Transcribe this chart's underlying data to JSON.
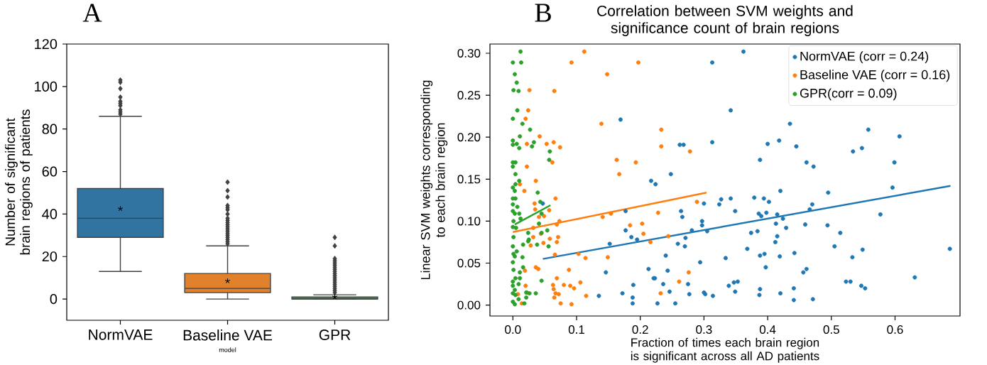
{
  "chart_data": [
    {
      "type": "box",
      "annotations": [
        "A"
      ],
      "xlabel": "model",
      "ylabel": "Number of significant brain regions of patients",
      "categories": [
        "NormVAE",
        "Baseline VAE",
        "GPR"
      ],
      "colors": [
        "#3274a1",
        "#e1812c",
        "#3a923a"
      ],
      "boxes": [
        {
          "low": 13,
          "q1": 29,
          "median": 38,
          "q3": 52,
          "high": 86,
          "mean": 42.5,
          "outliers": [
            87,
            88,
            89,
            91,
            92,
            93,
            95,
            99,
            102,
            103
          ]
        },
        {
          "low": 0,
          "q1": 3,
          "median": 5,
          "q3": 12,
          "high": 25,
          "mean": 8.5,
          "outliers": [
            26,
            27,
            28,
            29,
            30,
            31,
            32,
            33,
            34,
            35,
            36,
            37,
            38,
            40,
            42,
            43,
            44,
            48,
            51,
            55
          ]
        },
        {
          "low": 0,
          "q1": 0,
          "median": 0,
          "q3": 1,
          "high": 2,
          "mean": 1,
          "outliers": [
            3,
            4,
            5,
            6,
            7,
            8,
            9,
            10,
            11,
            12,
            13,
            14,
            15,
            16,
            17,
            18,
            19,
            25,
            29
          ]
        }
      ],
      "ylim": [
        -10,
        120
      ],
      "yticks": [
        0,
        20,
        40,
        60,
        80,
        100,
        120
      ]
    },
    {
      "type": "scatter",
      "annotations": [
        "B"
      ],
      "title": "Correlation between SVM weights and significance count of brain regions",
      "xlabel": "Fraction of times each brain region is significant across all AD patients",
      "ylabel": "Linear SVM weights corresponding to each brain region",
      "xlim": [
        -0.036,
        0.702
      ],
      "ylim": [
        -0.013,
        0.311
      ],
      "xticks": [
        {
          "value": 0,
          "label": "0.0"
        },
        0.1,
        0.2,
        0.3,
        0.4,
        0.5,
        0.6
      ],
      "yticks": [
        {
          "value": 0,
          "label": "0.00"
        },
        {
          "value": 0.05,
          "label": "0.05"
        },
        {
          "value": 0.1,
          "label": "0.10"
        },
        {
          "value": 0.15,
          "label": "0.15"
        },
        {
          "value": 0.2,
          "label": "0.20"
        },
        {
          "value": 0.25,
          "label": "0.25"
        },
        {
          "value": 0.3,
          "label": "0.30"
        }
      ],
      "legend": "top right",
      "series": [
        {
          "name": "NormVAE (corr = 0.24)",
          "marker": "circle",
          "color": "#1f77b4",
          "x": [
            0.313,
            0.169,
            0.313,
            0.262,
            0.268,
            0.248,
            0.217,
            0.224,
            0.177,
            0.264,
            0.266,
            0.3,
            0.297,
            0.297,
            0.305,
            0.281,
            0.177,
            0.186,
            0.195,
            0.152,
            0.259,
            0.27,
            0.271,
            0.24,
            0.294,
            0.146,
            0.213,
            0.243,
            0.221,
            0.223,
            0.236,
            0.189,
            0.275,
            0.246,
            0.172,
            0.135,
            0.188,
            0.277,
            0.3,
            0.302,
            0.314,
            0.188,
            0.227,
            0.255,
            0.047,
            0.362,
            0.342,
            0.435,
            0.558,
            0.607,
            0.418,
            0.4,
            0.445,
            0.534,
            0.548,
            0.388,
            0.461,
            0.472,
            0.599,
            0.596,
            0.42,
            0.495,
            0.327,
            0.342,
            0.324,
            0.379,
            0.394,
            0.402,
            0.47,
            0.466,
            0.349,
            0.386,
            0.39,
            0.398,
            0.415,
            0.424,
            0.577,
            0.413,
            0.459,
            0.494,
            0.429,
            0.374,
            0.384,
            0.514,
            0.415,
            0.412,
            0.505,
            0.368,
            0.549,
            0.686,
            0.334,
            0.388,
            0.395,
            0.419,
            0.442,
            0.533,
            0.397,
            0.456,
            0.461,
            0.631,
            0.339,
            0.347,
            0.353,
            0.523,
            0.53,
            0.547,
            0.553,
            0.349,
            0.388,
            0.441,
            0.387,
            0.42,
            0.441,
            0.471
          ],
          "values": [
            0.289,
            0.221,
            0.194,
            0.191,
            0.191,
            0.156,
            0.148,
            0.144,
            0.112,
            0.112,
            0.105,
            0.121,
            0.1,
            0.095,
            0.088,
            0.089,
            0.089,
            0.081,
            0.078,
            0.073,
            0.073,
            0.07,
            0.08,
            0.059,
            0.051,
            0.039,
            0.043,
            0.041,
            0.032,
            0.032,
            0.025,
            0.024,
            0.025,
            0.016,
            0.014,
            0.011,
            0.009,
            0.013,
            0.015,
            0.013,
            0.011,
            0.002,
            0.002,
            0.002,
            0.121,
            0.302,
            0.232,
            0.216,
            0.209,
            0.201,
            0.196,
            0.192,
            0.189,
            0.183,
            0.187,
            0.173,
            0.17,
            0.165,
            0.17,
            0.14,
            0.136,
            0.134,
            0.126,
            0.127,
            0.12,
            0.128,
            0.127,
            0.123,
            0.12,
            0.114,
            0.112,
            0.109,
            0.106,
            0.11,
            0.108,
            0.103,
            0.108,
            0.097,
            0.096,
            0.095,
            0.092,
            0.086,
            0.088,
            0.086,
            0.082,
            0.075,
            0.07,
            0.067,
            0.066,
            0.067,
            0.056,
            0.059,
            0.061,
            0.058,
            0.062,
            0.057,
            0.045,
            0.039,
            0.043,
            0.033,
            0.023,
            0.027,
            0.028,
            0.028,
            0.028,
            0.023,
            0.02,
            0.016,
            0.019,
            0.02,
            0.012,
            0.014,
            0.006,
            0.007
          ]
        },
        {
          "name": "Baseline VAE (corr = 0.16)",
          "marker": "circle",
          "color": "#ff7f0e",
          "x": [
            0.112,
            0.092,
            0.197,
            0.148,
            0.026,
            0.065,
            0.024,
            0.02,
            0.139,
            0.233,
            0.042,
            0.233,
            0.278,
            0.022,
            0.053,
            0.064,
            0.074,
            0.163,
            0.193,
            0.062,
            0.022,
            0.167,
            0.036,
            0.011,
            0.018,
            0.067,
            0.034,
            0.035,
            0.049,
            0.041,
            0.057,
            0.073,
            0.069,
            0.141,
            0.154,
            0.228,
            0.289,
            0.184,
            0.203,
            0.205,
            0.216,
            0.032,
            0.044,
            0.032,
            0.071,
            0.058,
            0.048,
            0.069,
            0.028,
            0.103,
            0.066,
            0.114,
            0.149,
            0.036,
            0.04,
            0.019,
            0.088,
            0.276,
            0.069,
            0.063,
            0.08,
            0.09,
            0.096,
            0.106,
            0.261,
            0.064,
            0.067,
            0.072,
            0.065,
            0.115,
            0.232,
            0.075,
            0.092,
            0.02,
            0.022,
            0.014,
            0.008,
            0.244
          ],
          "values": [
            0.302,
            0.289,
            0.289,
            0.275,
            0.256,
            0.255,
            0.232,
            0.222,
            0.216,
            0.209,
            0.201,
            0.189,
            0.183,
            0.192,
            0.192,
            0.194,
            0.188,
            0.173,
            0.17,
            0.17,
            0.165,
            0.156,
            0.148,
            0.144,
            0.136,
            0.127,
            0.121,
            0.114,
            0.106,
            0.105,
            0.113,
            0.1,
            0.096,
            0.105,
            0.109,
            0.11,
            0.123,
            0.095,
            0.097,
            0.085,
            0.075,
            0.092,
            0.085,
            0.081,
            0.081,
            0.079,
            0.074,
            0.075,
            0.071,
            0.061,
            0.06,
            0.056,
            0.057,
            0.045,
            0.043,
            0.041,
            0.042,
            0.039,
            0.032,
            0.024,
            0.024,
            0.023,
            0.02,
            0.027,
            0.028,
            0.019,
            0.014,
            0.013,
            0.009,
            0.011,
            0.014,
            0.002,
            0.001,
            0.023,
            0.015,
            0.002,
            0.013,
            0.082
          ]
        },
        {
          "name": "GPR(corr = 0.09)",
          "marker": "circle",
          "color": "#2ca02c",
          "x": [
            0.012,
            0.0,
            0.013,
            0.003,
            0.006,
            0.001,
            0.009,
            0.007,
            0.0,
            0.015,
            0.027,
            0.011,
            0.0,
            0.0,
            0.006,
            0.01,
            0.033,
            0.03,
            0.058,
            0.057,
            0.0,
            0.004,
            0.0,
            0.004,
            0.01,
            0.004,
            0.0,
            0.003,
            0.039,
            0.0,
            0.004,
            0.043,
            0.0,
            0.007,
            0.0,
            0.003,
            0.01,
            0.012,
            0.001,
            0.0,
            0.005,
            0.045,
            0.041,
            0.054,
            0.045,
            0.024,
            0.025,
            0.024,
            0.001,
            0.0,
            0.016,
            0.038,
            0.056,
            0.001,
            0.006,
            0.003,
            0.015,
            0.0,
            0.016,
            0.001,
            0.011,
            0.004,
            0.011,
            0.0,
            0.0,
            0.009,
            0.045,
            0.021,
            0.026,
            0.036,
            0.004,
            0.009,
            0.021,
            0.0,
            0.003,
            0.018,
            0.0,
            0.003
          ],
          "values": [
            0.302,
            0.289,
            0.289,
            0.275,
            0.265,
            0.256,
            0.255,
            0.232,
            0.222,
            0.216,
            0.209,
            0.201,
            0.196,
            0.191,
            0.192,
            0.187,
            0.194,
            0.189,
            0.183,
            0.173,
            0.17,
            0.17,
            0.165,
            0.156,
            0.148,
            0.144,
            0.14,
            0.136,
            0.134,
            0.127,
            0.127,
            0.123,
            0.12,
            0.117,
            0.112,
            0.109,
            0.109,
            0.103,
            0.1,
            0.093,
            0.092,
            0.109,
            0.097,
            0.089,
            0.086,
            0.086,
            0.078,
            0.076,
            0.081,
            0.07,
            0.072,
            0.072,
            0.07,
            0.061,
            0.064,
            0.058,
            0.057,
            0.051,
            0.045,
            0.042,
            0.039,
            0.032,
            0.032,
            0.028,
            0.023,
            0.025,
            0.029,
            0.015,
            0.014,
            0.014,
            0.012,
            0.007,
            0.009,
            0.004,
            0.001,
            0.002,
            0.014,
            0.018
          ]
        },
        {
          "type": "line",
          "marker": "none",
          "color": "#1f77b4",
          "x": [
            0.047,
            0.687
          ],
          "values": [
            0.055,
            0.142
          ]
        },
        {
          "type": "line",
          "marker": "none",
          "color": "#ff7f0e",
          "x": [
            0.0,
            0.304
          ],
          "values": [
            0.087,
            0.134
          ]
        },
        {
          "type": "line",
          "marker": "none",
          "color": "#2ca02c",
          "x": [
            0.003,
            0.059
          ],
          "values": [
            0.096,
            0.119
          ]
        }
      ]
    }
  ]
}
